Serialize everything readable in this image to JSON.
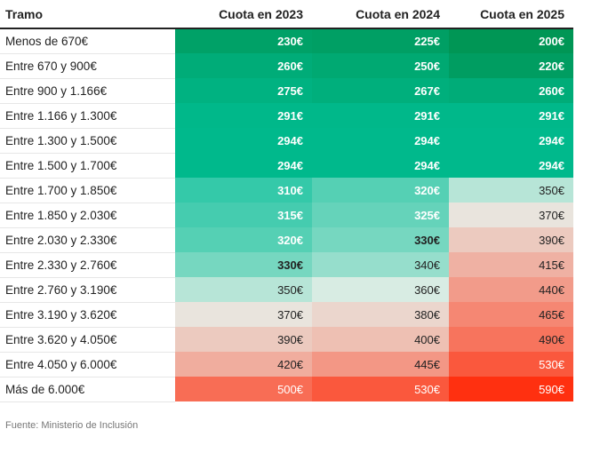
{
  "chart_data": {
    "type": "table",
    "columns": [
      "Tramo",
      "Cuota en 2023",
      "Cuota en 2024",
      "Cuota en 2025"
    ],
    "rows": [
      {
        "tramo": "Menos de 670€",
        "values": [
          "230€",
          "225€",
          "200€"
        ]
      },
      {
        "tramo": "Entre 670 y 900€",
        "values": [
          "260€",
          "250€",
          "220€"
        ]
      },
      {
        "tramo": "Entre 900 y 1.166€",
        "values": [
          "275€",
          "267€",
          "260€"
        ]
      },
      {
        "tramo": "Entre 1.166 y 1.300€",
        "values": [
          "291€",
          "291€",
          "291€"
        ]
      },
      {
        "tramo": "Entre 1.300 y 1.500€",
        "values": [
          "294€",
          "294€",
          "294€"
        ]
      },
      {
        "tramo": "Entre 1.500 y 1.700€",
        "values": [
          "294€",
          "294€",
          "294€"
        ]
      },
      {
        "tramo": "Entre 1.700 y 1.850€",
        "values": [
          "310€",
          "320€",
          "350€"
        ]
      },
      {
        "tramo": "Entre 1.850 y 2.030€",
        "values": [
          "315€",
          "325€",
          "370€"
        ]
      },
      {
        "tramo": "Entre 2.030 y 2.330€",
        "values": [
          "320€",
          "330€",
          "390€"
        ]
      },
      {
        "tramo": "Entre 2.330 y 2.760€",
        "values": [
          "330€",
          "340€",
          "415€"
        ]
      },
      {
        "tramo": "Entre 2.760 y 3.190€",
        "values": [
          "350€",
          "360€",
          "440€"
        ]
      },
      {
        "tramo": "Entre 3.190 y 3.620€",
        "values": [
          "370€",
          "380€",
          "465€"
        ]
      },
      {
        "tramo": "Entre 3.620 y 4.050€",
        "values": [
          "390€",
          "400€",
          "490€"
        ]
      },
      {
        "tramo": "Entre 4.050 y 6.000€",
        "values": [
          "420€",
          "445€",
          "530€"
        ]
      },
      {
        "tramo": "Más de 6.000€",
        "values": [
          "500€",
          "530€",
          "590€"
        ]
      }
    ],
    "color_scale": {
      "low": "#009a5a",
      "mid": "#e8efe9",
      "high": "#ff3010"
    }
  },
  "source": "Fuente: Ministerio de Inclusión"
}
